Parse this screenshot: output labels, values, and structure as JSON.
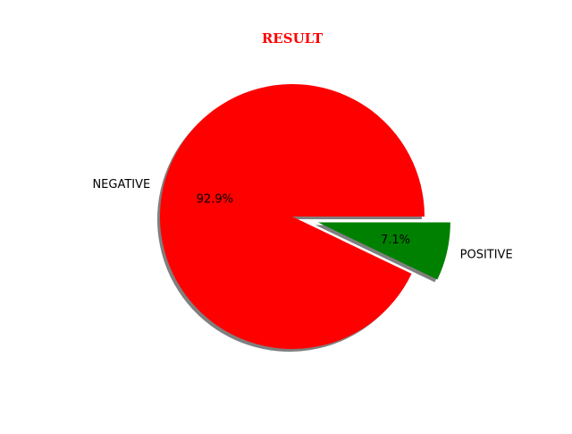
{
  "chart_data": {
    "type": "pie",
    "title": "RESULT",
    "title_color": "#ff0000",
    "categories": [
      "NEGATIVE",
      "POSITIVE"
    ],
    "values": [
      92.9,
      7.1
    ],
    "percent_labels": [
      "92.9%",
      "7.1%"
    ],
    "colors": [
      "#ff0000",
      "#008000"
    ],
    "explode": [
      0,
      0.2
    ],
    "shadow": true,
    "start_angle_deg": 0,
    "legend": false
  }
}
